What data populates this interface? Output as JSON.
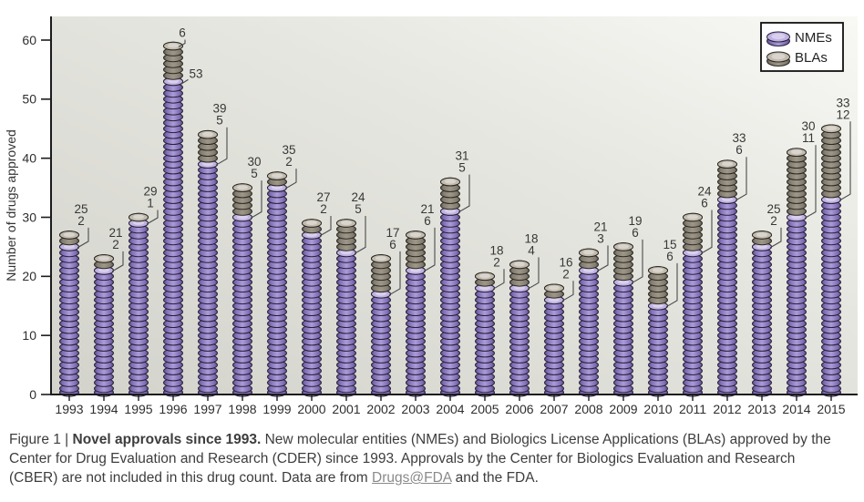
{
  "figure": {
    "caption": {
      "prefix": "Figure 1 | ",
      "title_bold": "Novel approvals since 1993.",
      "body_before_link": " New molecular entities (NMEs) and Biologics License Applications (BLAs) approved by the Center for Drug Evaluation and Research (CDER) since 1993. Approvals by the Center for Biologics Evaluation and Research (CBER) are not included in this drug count. Data are from ",
      "link_text": "Drugs@FDA",
      "body_after_link": " and the FDA."
    }
  },
  "chart_data": {
    "type": "bar",
    "stacked": true,
    "style": "coin-stack",
    "title": "",
    "xlabel": "",
    "ylabel": "Number of drugs approved",
    "ylim": [
      0,
      60
    ],
    "yticks": [
      0,
      10,
      20,
      30,
      40,
      50,
      60
    ],
    "grid": false,
    "legend_position": "top-right",
    "categories": [
      "1993",
      "1994",
      "1995",
      "1996",
      "1997",
      "1998",
      "1999",
      "2000",
      "2001",
      "2002",
      "2003",
      "2004",
      "2005",
      "2006",
      "2007",
      "2008",
      "2009",
      "2010",
      "2011",
      "2012",
      "2013",
      "2014",
      "2015"
    ],
    "series": [
      {
        "name": "NMEs",
        "values": [
          25,
          21,
          29,
          53,
          39,
          30,
          35,
          27,
          24,
          17,
          21,
          31,
          18,
          18,
          16,
          21,
          19,
          15,
          24,
          33,
          25,
          30,
          33
        ]
      },
      {
        "name": "BLAs",
        "values": [
          2,
          2,
          1,
          6,
          5,
          5,
          2,
          2,
          5,
          6,
          6,
          5,
          2,
          4,
          2,
          3,
          6,
          6,
          6,
          6,
          2,
          11,
          12
        ]
      }
    ]
  },
  "colors": {
    "nme": "#7e6cb2",
    "nme_mid": "#ab9cd8",
    "nme_dark": "#564880",
    "nme_cap": "#c0b3e2",
    "nme_outline": "#261f39",
    "bla": "#837d71",
    "bla_mid": "#9e9789",
    "bla_dark": "#5b564d",
    "bla_cap": "#c2bcb0",
    "bla_outline": "#2b2720",
    "axis": "#1c1c1c",
    "tick_text": "#2e2e2e",
    "value_text": "#373737",
    "leader": "#4a4a4a",
    "plot_bg_dark": "#d3d3cc",
    "plot_bg_light": "#f8f8f5",
    "legend_bg": "#ffffff",
    "legend_border": "#111111",
    "caption_text": "#3d3d3d",
    "link": "#8a8a8a"
  }
}
